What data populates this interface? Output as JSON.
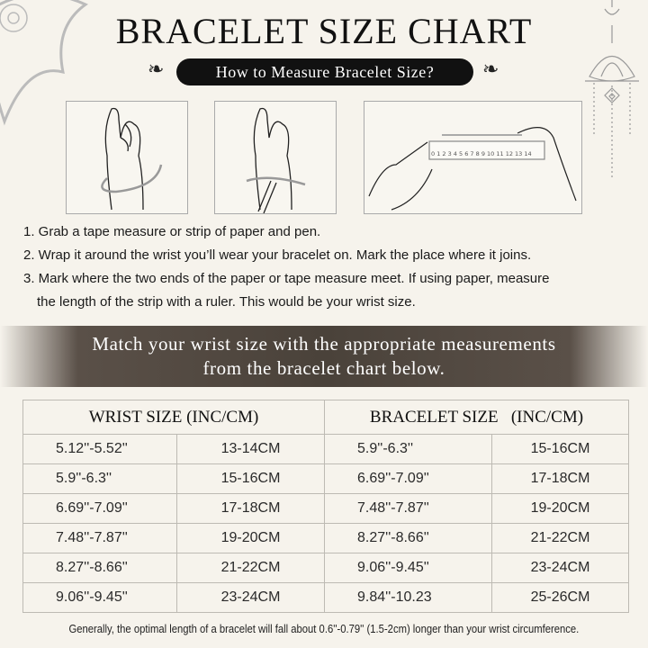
{
  "title": "BRACELET SIZE CHART",
  "subtitle": "How to Measure Bracelet Size?",
  "ruler_numbers": [
    "0",
    "1",
    "2",
    "3",
    "4",
    "5",
    "6",
    "7",
    "8",
    "9",
    "10",
    "11",
    "12",
    "13",
    "14"
  ],
  "steps": [
    "1. Grab a tape measure or strip of paper and pen.",
    "2. Wrap it around the wrist you’ll wear your bracelet on. Mark the place where it joins.",
    "3. Mark where the two ends of the paper or tape measure meet. If using paper, measure",
    "the length of the strip with a ruler. This would be your wrist size."
  ],
  "banner": [
    "Match your wrist size with the appropriate measurements",
    "from the bracelet chart below."
  ],
  "table": {
    "headers": [
      "WRIST SIZE (INC/CM)",
      "BRACELET SIZE   (INC/CM)"
    ],
    "rows": [
      [
        "5.12''-5.52''",
        "13-14CM",
        "5.9''-6.3''",
        "15-16CM"
      ],
      [
        "5.9''-6.3''",
        "15-16CM",
        "6.69''-7.09''",
        "17-18CM"
      ],
      [
        "6.69''-7.09''",
        "17-18CM",
        "7.48''-7.87''",
        "19-20CM"
      ],
      [
        "7.48''-7.87''",
        "19-20CM",
        "8.27''-8.66''",
        "21-22CM"
      ],
      [
        "8.27''-8.66''",
        "21-22CM",
        "9.06''-9.45''",
        "23-24CM"
      ],
      [
        "9.06''-9.45''",
        "23-24CM",
        "9.84''-10.23",
        "25-26CM"
      ]
    ]
  },
  "footer": "Generally, the optimal length of a bracelet will fall about 0.6''-0.79'' (1.5-2cm) longer than your wrist circumference."
}
